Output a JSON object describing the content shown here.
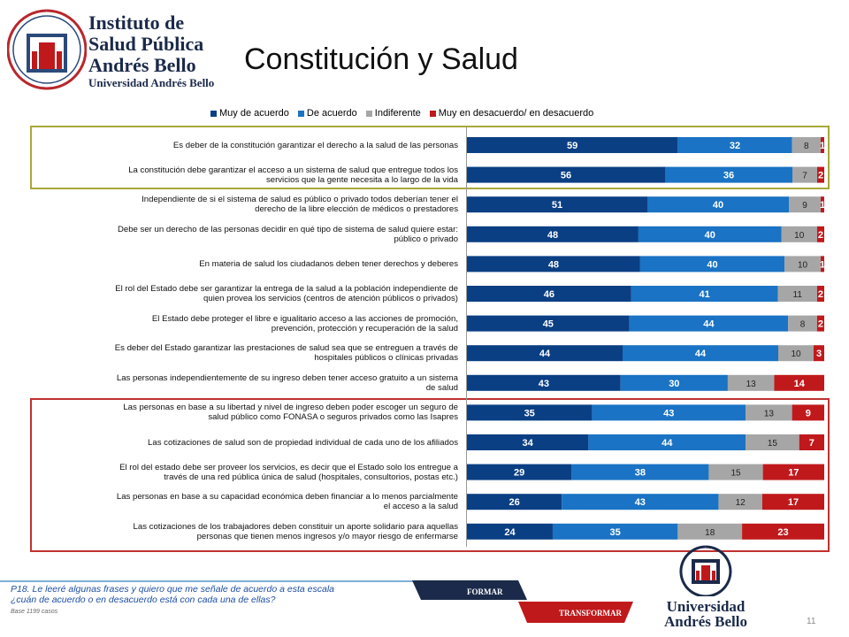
{
  "header": {
    "institute_line1": "Instituto de",
    "institute_line2": "Salud Pública",
    "institute_line3": "Andrés Bello",
    "institute_line4": "Universidad Andrés Bello",
    "title": "Constitución y Salud"
  },
  "colors": {
    "muy_de_acuerdo": "#0b3f84",
    "de_acuerdo": "#1a73c4",
    "indiferente": "#a6a6a6",
    "desacuerdo": "#c0191c"
  },
  "chart_data": {
    "type": "bar",
    "orientation": "horizontal-stacked-100",
    "xlim": [
      0,
      100
    ],
    "legend_position": "top",
    "series": [
      {
        "name": "Muy de acuerdo",
        "values": [
          59,
          56,
          51,
          48,
          48,
          46,
          45,
          44,
          43,
          35,
          34,
          29,
          26,
          24
        ]
      },
      {
        "name": "De acuerdo",
        "values": [
          32,
          36,
          40,
          40,
          40,
          41,
          44,
          44,
          30,
          43,
          44,
          38,
          43,
          35
        ]
      },
      {
        "name": "Indiferente",
        "values": [
          8,
          7,
          9,
          10,
          10,
          11,
          8,
          10,
          13,
          13,
          15,
          15,
          12,
          18
        ]
      },
      {
        "name": "Muy en desacuerdo/ en desacuerdo",
        "values": [
          1,
          2,
          1,
          2,
          1,
          2,
          2,
          3,
          14,
          9,
          7,
          17,
          17,
          23
        ]
      }
    ],
    "categories": [
      [
        "Es deber de la constitución garantizar el derecho a la salud de las personas"
      ],
      [
        "La constitución debe garantizar  el acceso a un sistema de salud que entregue todos los",
        "servicios que la gente necesita a lo largo de la vida"
      ],
      [
        "Independiente de si el sistema de salud es público o privado todos deberían tener el",
        "derecho de la  libre elección de médicos o prestadores"
      ],
      [
        "Debe ser un derecho de las personas decidir en qué tipo de sistema de salud quiere estar:",
        "público o privado"
      ],
      [
        "En materia de salud los ciudadanos deben tener derechos y deberes"
      ],
      [
        "El rol del Estado debe ser garantizar la entrega de la salud a la población independiente de",
        "quien provea los servicios (centros de atención públicos o privados)"
      ],
      [
        "El Estado debe proteger el libre e igualitario acceso a las acciones de promoción,",
        "prevención, protección y recuperación de la salud"
      ],
      [
        "Es deber del Estado garantizar las prestaciones de salud sea que se entreguen a través de",
        "hospitales  públicos o clínicas privadas"
      ],
      [
        "Las personas independientemente de su ingreso deben tener acceso gratuito a un sistema",
        "de salud"
      ],
      [
        "Las personas en base a su libertad y nivel de ingreso deben poder  escoger un seguro de",
        "salud público como FONASA o seguros privados como las Isapres"
      ],
      [
        "Las cotizaciones de salud son de propiedad individual de cada uno de los afiliados"
      ],
      [
        "El rol del estado debe ser proveer los servicios, es decir que el Estado solo los entregue a",
        "través de una red pública única de salud (hospitales, consultorios, postas etc.)"
      ],
      [
        "Las personas en base a su capacidad económica deben financiar a lo menos parcialmente",
        "el acceso a la salud"
      ],
      [
        "Las cotizaciones de los trabajadores deben constituir un aporte solidario para aquellas",
        "personas que tienen menos ingresos y/o mayor riesgo de enfermarse"
      ]
    ]
  },
  "footer": {
    "question_line1": "P18. Le leeré algunas frases y quiero que me señale de acuerdo a esta escala",
    "question_line2": "¿cuán de acuerdo o en desacuerdo está con cada una de ellas?",
    "base": "Base 1199 casos",
    "banner_top": "FORMAR",
    "banner_bottom": "TRANSFORMAR",
    "university_line1": "Universidad",
    "university_line2": "Andrés Bello",
    "page_number": "11"
  }
}
